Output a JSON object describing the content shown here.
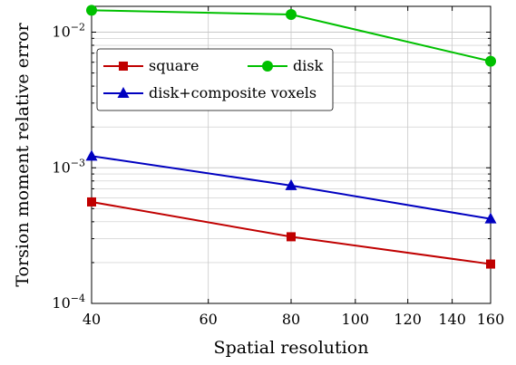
{
  "chart_data": {
    "type": "line",
    "xlabel": "Spatial resolution",
    "ylabel": "Torsion moment relative error",
    "x_scale": "log",
    "y_scale": "log",
    "xlim": [
      40,
      160
    ],
    "ylim": [
      0.0001,
      0.0155
    ],
    "x_ticks": [
      {
        "value": 40,
        "label": "40"
      },
      {
        "value": 60,
        "label": "60"
      },
      {
        "value": 80,
        "label": "80"
      },
      {
        "value": 100,
        "label": "100"
      },
      {
        "value": 120,
        "label": "120"
      },
      {
        "value": 140,
        "label": "140"
      },
      {
        "value": 160,
        "label": "160"
      }
    ],
    "y_ticks": [
      {
        "value": 0.0001,
        "base": "10",
        "exp": "−4"
      },
      {
        "value": 0.001,
        "base": "10",
        "exp": "−3"
      },
      {
        "value": 0.01,
        "base": "10",
        "exp": "−2"
      }
    ],
    "grid": true,
    "legend_position": "top-left",
    "series": [
      {
        "name": "square",
        "color": "#c00000",
        "marker": "square",
        "x": [
          40,
          80,
          160
        ],
        "y": [
          0.00056,
          0.00031,
          0.000195
        ]
      },
      {
        "name": "disk",
        "color": "#00c000",
        "marker": "circle",
        "x": [
          40,
          80,
          160
        ],
        "y": [
          0.0145,
          0.0135,
          0.0061
        ]
      },
      {
        "name": "disk+composite voxels",
        "color": "#0000c0",
        "marker": "triangle",
        "x": [
          40,
          80,
          160
        ],
        "y": [
          0.00122,
          0.00074,
          0.00042
        ]
      }
    ]
  }
}
